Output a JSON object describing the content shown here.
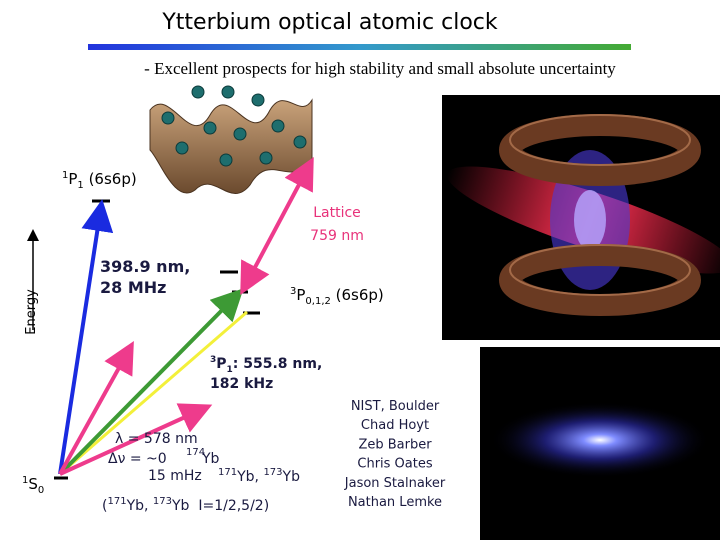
{
  "header": {
    "title": "Ytterbium optical atomic clock",
    "subtitle": "- Excellent prospects for high stability and small absolute uncertainty"
  },
  "diagram": {
    "axis_label": "Energy",
    "upper_state": {
      "sup": "1",
      "base": "P",
      "sub": "1",
      "suffix": " (6s6p)"
    },
    "ground_state": {
      "sup": "1",
      "base": "S",
      "sub": "0"
    },
    "triplet_state": {
      "sup": "3",
      "base": "P",
      "sub": "0,1,2",
      "suffix": " (6s6p)"
    },
    "lattice": [
      "Lattice",
      "759 nm"
    ],
    "blue_transition": [
      "398.9 nm,",
      "28 MHz"
    ],
    "green_transition": {
      "sup": "3",
      "base": "P",
      "sub": "1",
      "suffix": ": 555.8 nm,",
      "line2": "182 kHz"
    },
    "clock_transition": {
      "wavelength": "λ = 578 nm",
      "linewidth_174": "Δν = ~0",
      "iso_174_mass": "174",
      "iso_174_symbol": "Yb",
      "linewidth_odd": "15 mHz",
      "iso_odd_mass_a": "171",
      "iso_odd_symbol_a": "Yb, ",
      "iso_odd_mass_b": "173",
      "iso_odd_symbol_b": "Yb"
    },
    "spin_note": {
      "open": "(",
      "mass_a": "171",
      "sym_a": "Yb, ",
      "mass_b": "173",
      "sym_b": "Yb  I=1/2,5/2)"
    }
  },
  "credits": [
    "NIST, Boulder",
    "Chad Hoyt",
    "Zeb Barber",
    "Chris Oates",
    "Jason Stalnaker",
    "Nathan Lemke"
  ]
}
